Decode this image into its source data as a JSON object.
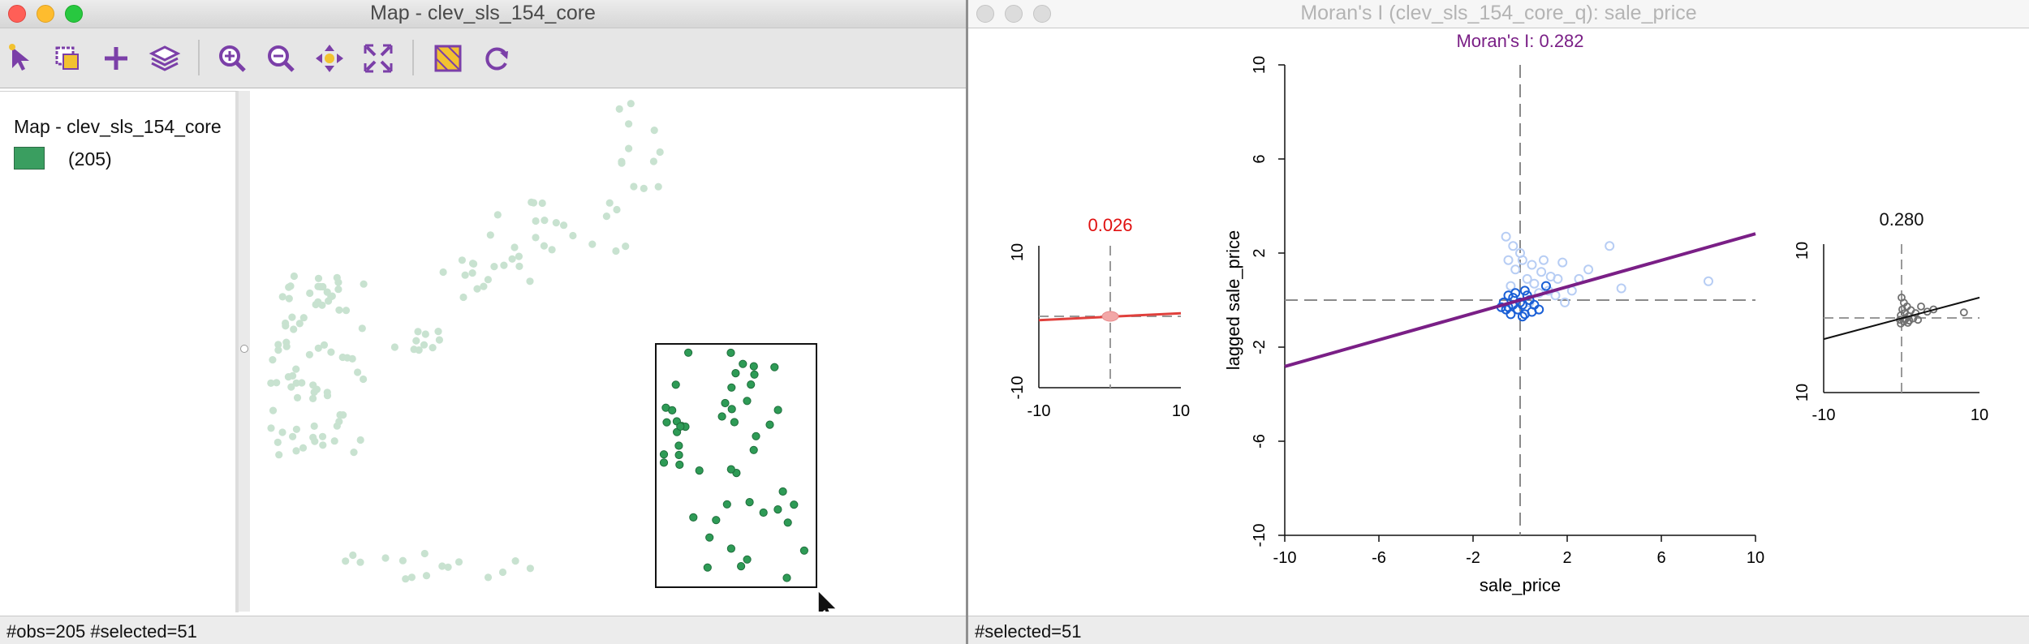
{
  "map_window": {
    "title": "Map - clev_sls_154_core",
    "toolbar": [
      "select-icon",
      "select-shapes-icon",
      "add-icon",
      "layers-icon",
      "zoom-in-icon",
      "zoom-out-icon",
      "pan-icon",
      "full-extent-icon",
      "map-toggle-icon",
      "refresh-icon"
    ],
    "legend": {
      "title": "Map - clev_sls_154_core",
      "category_label": "(205)",
      "category_color": "#3a9e60"
    },
    "status": "#obs=205 #selected=51"
  },
  "moran_window": {
    "title": "Moran's I (clev_sls_154_core_q): sale_price",
    "status": "#selected=51"
  },
  "colors": {
    "selected_point": "#2e9b56",
    "unselected_point": "#c8e2d0",
    "moran_line": "#7a1f86",
    "moran_title": "#7a1f86",
    "excluded_title": "#e01010",
    "excluded_line": "#e0403c",
    "selected_scatter": "#1a5fd6",
    "unselected_scatter": "#b7cdf4",
    "right_scatter": "#707070"
  },
  "chart_data": [
    {
      "type": "scatter",
      "title": "Moran's I: 0.282",
      "xlabel": "sale_price",
      "ylabel": "lagged sale_price",
      "xlim": [
        -10,
        10
      ],
      "ylim": [
        -10,
        10
      ],
      "xticks": [
        "-10",
        "-6",
        "-2",
        "2",
        "6",
        "10"
      ],
      "yticks": [
        "-10",
        "-6",
        "-2",
        "2",
        "6",
        "10"
      ],
      "slope": 0.282,
      "reference_lines": {
        "x": 0,
        "y": 0
      },
      "selected_points": [
        [
          -0.7,
          -0.1
        ],
        [
          -0.5,
          -0.3
        ],
        [
          -0.3,
          0.1
        ],
        [
          -0.1,
          -0.4
        ],
        [
          0.1,
          -0.2
        ],
        [
          0.3,
          0.2
        ],
        [
          0.5,
          -0.5
        ],
        [
          0.2,
          -0.6
        ],
        [
          -0.4,
          -0.6
        ],
        [
          -0.2,
          0.3
        ],
        [
          0.0,
          -0.1
        ],
        [
          0.4,
          0.0
        ],
        [
          -0.6,
          -0.4
        ],
        [
          -0.8,
          -0.3
        ],
        [
          0.6,
          -0.2
        ],
        [
          1.1,
          0.6
        ],
        [
          0.8,
          -0.4
        ],
        [
          0.2,
          0.4
        ],
        [
          -0.5,
          0.2
        ],
        [
          0.1,
          -0.7
        ],
        [
          -0.3,
          -0.2
        ]
      ],
      "other_points": [
        [
          -0.6,
          2.7
        ],
        [
          -0.3,
          2.3
        ],
        [
          0.1,
          1.7
        ],
        [
          0.5,
          1.5
        ],
        [
          0.9,
          1.2
        ],
        [
          1.3,
          1.0
        ],
        [
          1.8,
          1.6
        ],
        [
          2.5,
          0.9
        ],
        [
          3.8,
          2.3
        ],
        [
          4.3,
          0.5
        ],
        [
          8.0,
          0.8
        ],
        [
          1.5,
          0.2
        ],
        [
          0.8,
          0.3
        ],
        [
          0.3,
          0.9
        ],
        [
          -0.2,
          1.3
        ],
        [
          1.0,
          1.7
        ],
        [
          2.2,
          0.4
        ],
        [
          -0.4,
          0.6
        ],
        [
          0.6,
          0.7
        ],
        [
          1.9,
          -0.1
        ],
        [
          -0.5,
          1.7
        ],
        [
          0.0,
          2.0
        ],
        [
          1.2,
          0.4
        ],
        [
          2.9,
          1.3
        ],
        [
          0.4,
          -0.1
        ],
        [
          1.6,
          0.9
        ]
      ]
    },
    {
      "type": "scatter",
      "title": "0.026",
      "xlim": [
        -10,
        10
      ],
      "ylim": [
        -10,
        10
      ],
      "xticks": [
        "-10",
        "10"
      ],
      "yticks": [
        "10",
        "-10"
      ],
      "slope": 0.026,
      "note": "regression for unselected observations"
    },
    {
      "type": "scatter",
      "title": "0.280",
      "xlim": [
        -10,
        10
      ],
      "ylim": [
        -10,
        10
      ],
      "xticks": [
        "-10",
        "10"
      ],
      "yticks": [
        "10",
        "10"
      ],
      "slope": 0.28,
      "note": "regression for selected observations",
      "points": [
        [
          0.0,
          2.8
        ],
        [
          0.3,
          2.1
        ],
        [
          0.7,
          1.6
        ],
        [
          1.2,
          1.1
        ],
        [
          1.8,
          0.7
        ],
        [
          2.5,
          1.6
        ],
        [
          3.3,
          0.9
        ],
        [
          4.1,
          1.2
        ],
        [
          8.0,
          0.8
        ],
        [
          0.1,
          1.2
        ],
        [
          0.4,
          0.7
        ],
        [
          0.9,
          0.3
        ],
        [
          1.5,
          0.0
        ],
        [
          2.1,
          -0.2
        ],
        [
          -0.1,
          0.4
        ],
        [
          0.5,
          -0.1
        ],
        [
          1.0,
          -0.3
        ],
        [
          -0.2,
          -0.2
        ],
        [
          0.3,
          -0.4
        ],
        [
          0.8,
          -0.6
        ],
        [
          -0.1,
          -0.7
        ]
      ]
    }
  ]
}
